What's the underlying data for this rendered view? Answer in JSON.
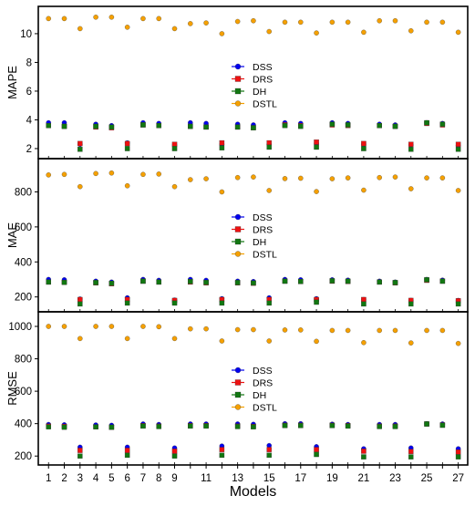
{
  "chart_data": {
    "type": "scatter",
    "xlabel": "Models",
    "x": [
      1,
      2,
      3,
      4,
      5,
      6,
      7,
      8,
      9,
      10,
      11,
      12,
      13,
      14,
      15,
      16,
      17,
      18,
      19,
      20,
      21,
      22,
      23,
      24,
      25,
      26,
      27
    ],
    "x_tick_labels": [
      "1",
      "2",
      "3",
      "4",
      "5",
      "6",
      "7",
      "8",
      "9",
      "11",
      "13",
      "15",
      "17",
      "19",
      "21",
      "23",
      "25",
      "27"
    ],
    "legend_position": "center",
    "series_styles": [
      {
        "name": "DSS",
        "color": "#0000ee",
        "marker": "circle"
      },
      {
        "name": "DRS",
        "color": "#ee1111",
        "marker": "square"
      },
      {
        "name": "DH",
        "color": "#117711",
        "marker": "square"
      },
      {
        "name": "DSTL",
        "color": "#f5a000",
        "marker": "circle"
      }
    ],
    "panels": [
      {
        "ylabel": "MAPE",
        "ylim": [
          1.3,
          11.9
        ],
        "yticks": [
          2,
          4,
          6,
          8,
          10
        ],
        "series": [
          {
            "name": "DSS",
            "values": [
              3.8,
              3.8,
              2.3,
              3.7,
              3.6,
              2.4,
              3.8,
              3.75,
              2.25,
              3.8,
              3.75,
              2.3,
              3.7,
              3.65,
              2.3,
              3.8,
              3.75,
              2.35,
              3.8,
              3.75,
              2.3,
              3.7,
              3.65,
              2.25,
              3.8,
              3.75,
              2.2
            ]
          },
          {
            "name": "DRS",
            "values": [
              3.6,
              3.55,
              2.35,
              3.5,
              3.45,
              2.35,
              3.65,
              3.6,
              2.3,
              3.55,
              3.5,
              2.4,
              3.5,
              3.45,
              2.4,
              3.65,
              3.6,
              2.45,
              3.65,
              3.6,
              2.35,
              3.6,
              3.55,
              2.3,
              3.75,
              3.65,
              2.3
            ]
          },
          {
            "name": "DH",
            "values": [
              3.6,
              3.55,
              1.95,
              3.55,
              3.5,
              2.0,
              3.65,
              3.6,
              2.0,
              3.55,
              3.5,
              2.05,
              3.5,
              3.45,
              2.1,
              3.6,
              3.55,
              2.1,
              3.7,
              3.65,
              2.0,
              3.6,
              3.55,
              1.95,
              3.8,
              3.7,
              1.95
            ]
          },
          {
            "name": "DSTL",
            "values": [
              11.05,
              11.05,
              10.35,
              11.15,
              11.15,
              10.45,
              11.05,
              11.05,
              10.35,
              10.7,
              10.75,
              10.0,
              10.85,
              10.9,
              10.15,
              10.8,
              10.8,
              10.05,
              10.8,
              10.8,
              10.1,
              10.9,
              10.9,
              10.2,
              10.8,
              10.8,
              10.1
            ]
          }
        ]
      },
      {
        "ylabel": "MAE",
        "ylim": [
          115,
          990
        ],
        "yticks": [
          200,
          400,
          600,
          800
        ],
        "series": [
          {
            "name": "DSS",
            "values": [
              300,
              298,
              188,
              290,
              285,
              195,
              300,
              295,
              182,
              300,
              295,
              190,
              290,
              288,
              195,
              300,
              298,
              190,
              298,
              296,
              185,
              290,
              285,
              180,
              300,
              296,
              180
            ]
          },
          {
            "name": "DRS",
            "values": [
              285,
              283,
              185,
              280,
              275,
              185,
              290,
              285,
              180,
              285,
              280,
              185,
              280,
              278,
              185,
              290,
              288,
              185,
              290,
              288,
              185,
              285,
              280,
              180,
              295,
              290,
              178
            ]
          },
          {
            "name": "DH",
            "values": [
              285,
              283,
              160,
              282,
              278,
              165,
              290,
              285,
              165,
              288,
              283,
              165,
              282,
              280,
              165,
              290,
              288,
              170,
              292,
              290,
              160,
              285,
              282,
              160,
              298,
              290,
              160
            ]
          },
          {
            "name": "DSTL",
            "values": [
              897,
              900,
              830,
              905,
              908,
              835,
              900,
              902,
              830,
              870,
              875,
              800,
              882,
              885,
              808,
              876,
              878,
              802,
              875,
              880,
              810,
              882,
              885,
              818,
              880,
              880,
              808
            ]
          }
        ]
      },
      {
        "ylabel": "RMSE",
        "ylim": [
          145,
          1090
        ],
        "yticks": [
          200,
          400,
          600,
          800,
          1000
        ],
        "series": [
          {
            "name": "DSS",
            "values": [
              395,
              393,
              255,
              392,
              390,
              255,
              398,
              395,
              250,
              398,
              398,
              262,
              398,
              396,
              265,
              400,
              400,
              258,
              397,
              395,
              245,
              395,
              395,
              250,
              400,
              398,
              245
            ]
          },
          {
            "name": "DRS",
            "values": [
              385,
              383,
              235,
              380,
              378,
              235,
              388,
              385,
              230,
              388,
              388,
              240,
              385,
              383,
              240,
              390,
              390,
              240,
              390,
              388,
              230,
              385,
              385,
              228,
              398,
              392,
              225
            ]
          },
          {
            "name": "DH",
            "values": [
              380,
              378,
              200,
              380,
              378,
              205,
              385,
              382,
              200,
              385,
              385,
              205,
              382,
              380,
              205,
              388,
              388,
              210,
              388,
              385,
              195,
              382,
              382,
              195,
              398,
              390,
              195
            ]
          },
          {
            "name": "DSTL",
            "values": [
              1000,
              1000,
              925,
              1000,
              1000,
              925,
              1000,
              998,
              925,
              985,
              985,
              910,
              980,
              980,
              910,
              978,
              978,
              908,
              975,
              975,
              900,
              975,
              975,
              898,
              975,
              975,
              895
            ]
          }
        ]
      }
    ]
  }
}
